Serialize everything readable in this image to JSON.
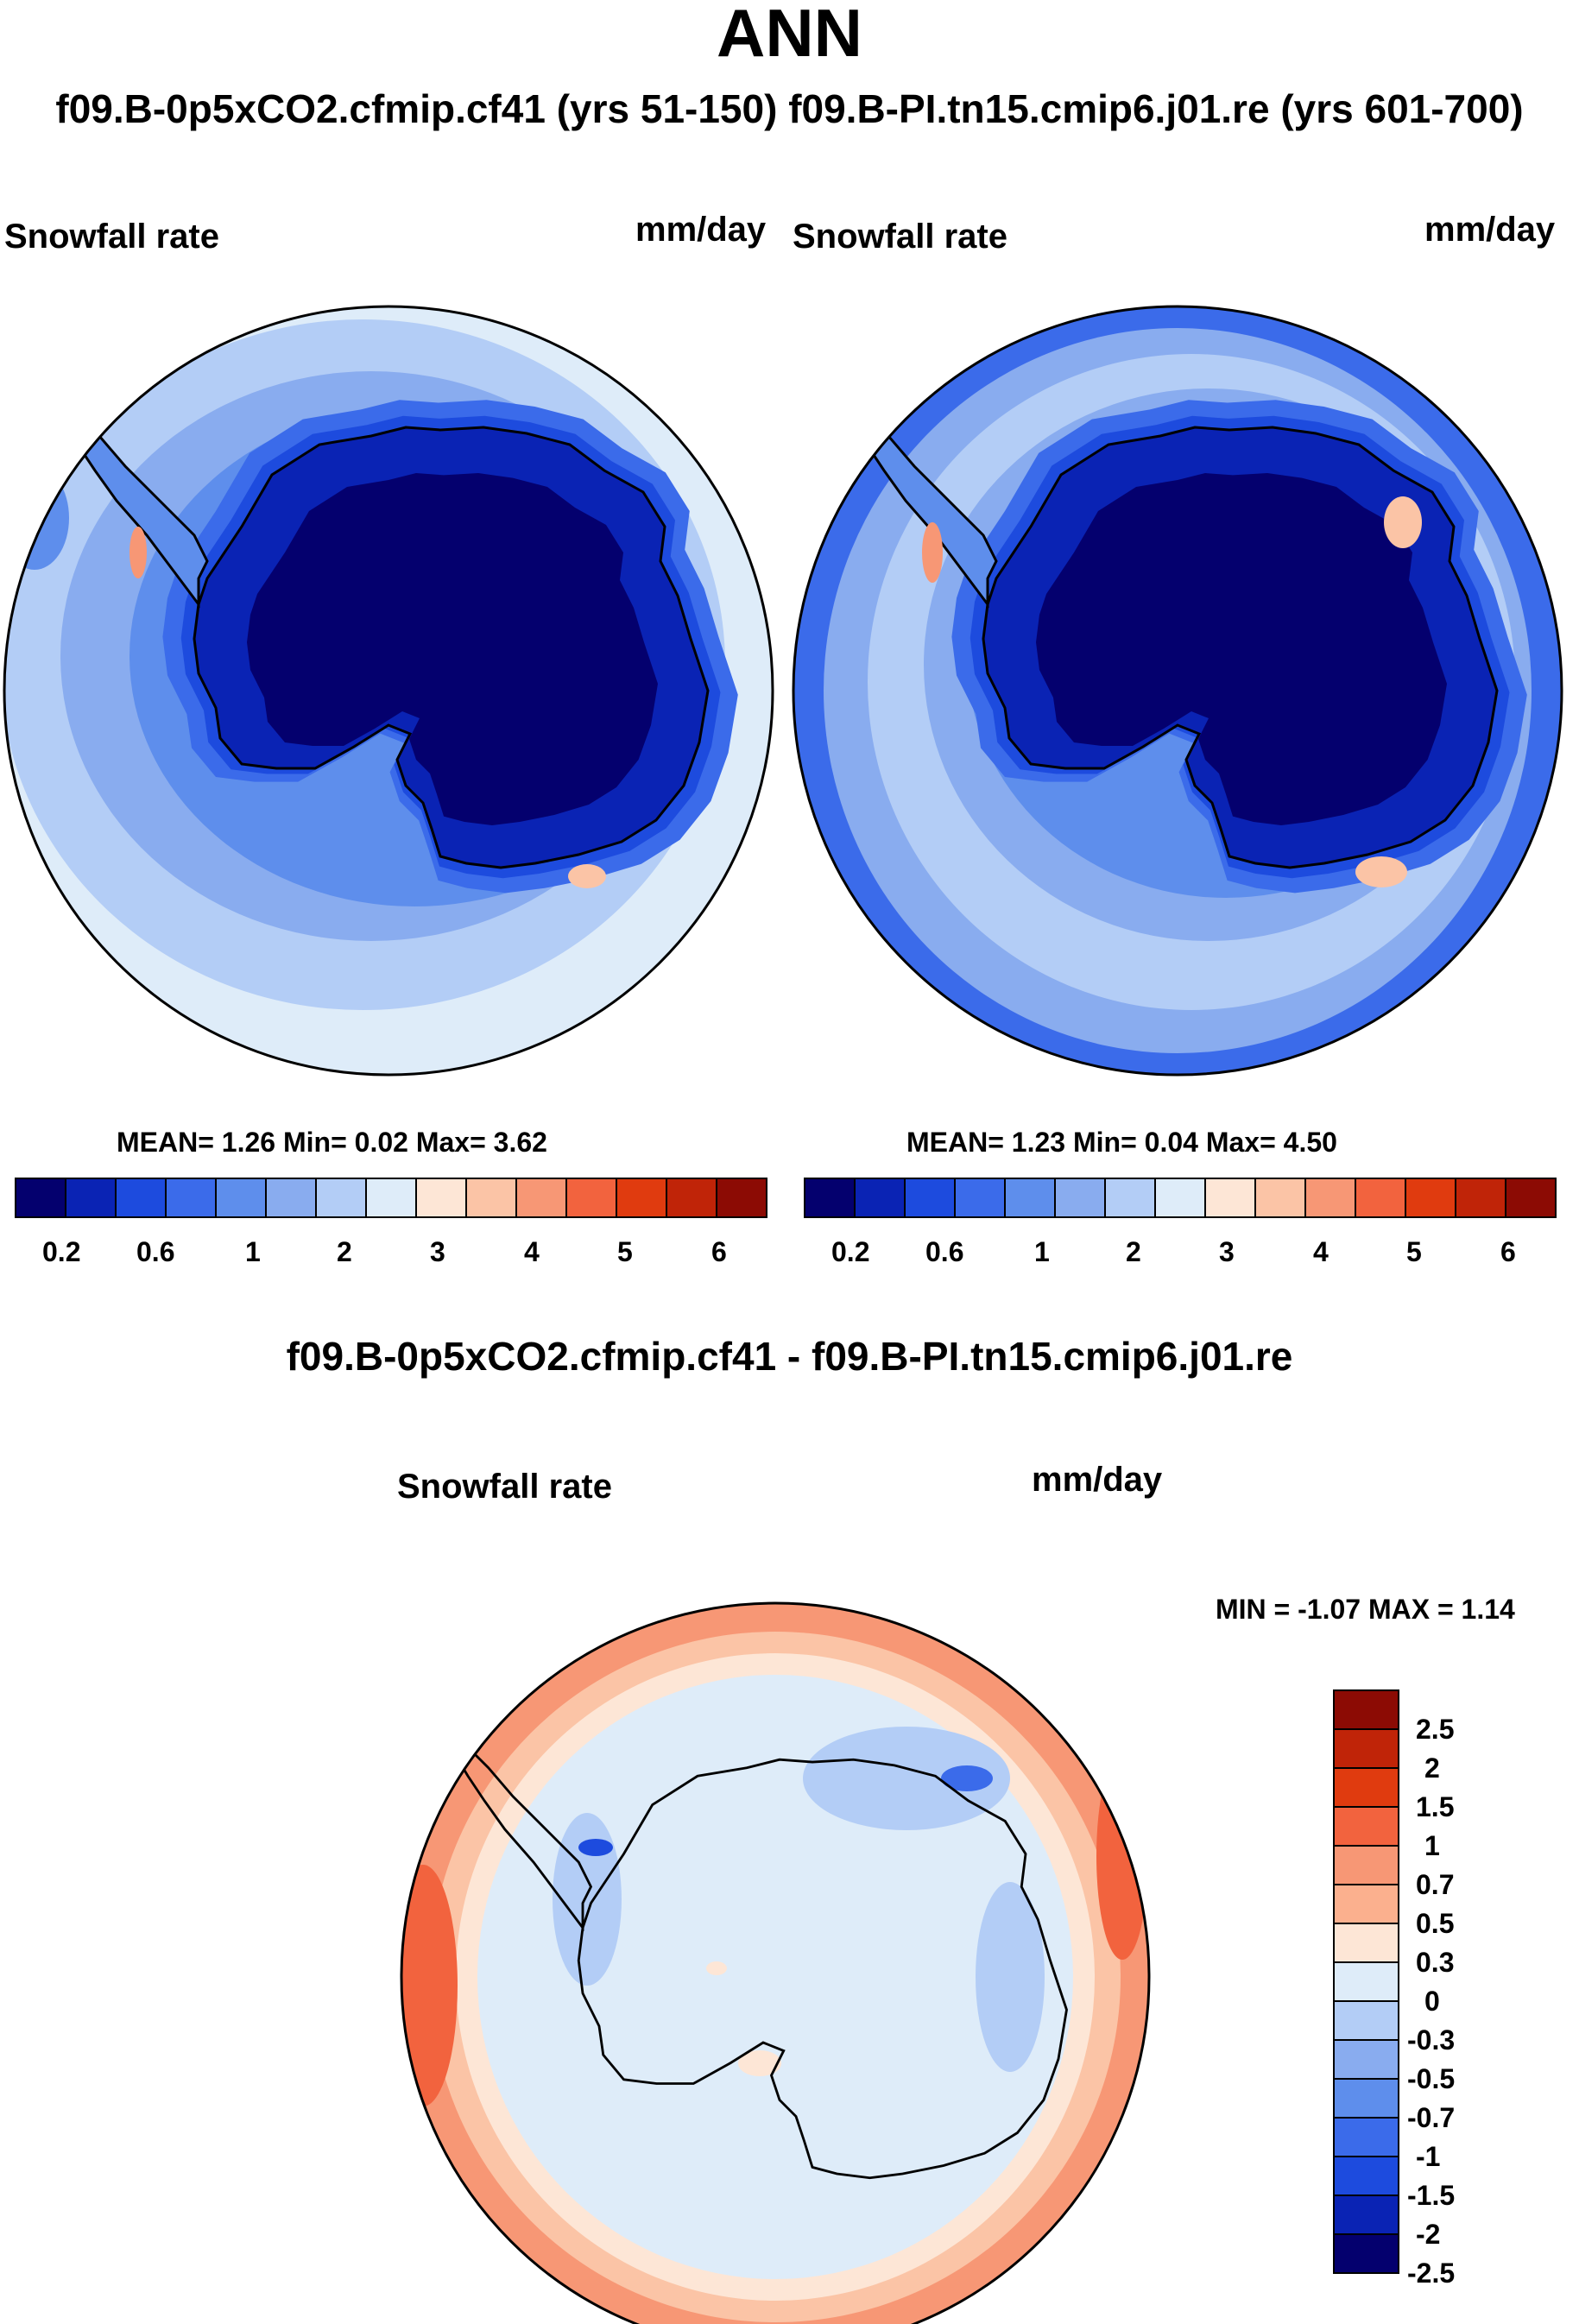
{
  "title": "ANN",
  "subtitle": "f09.B-0p5xCO2.cfmip.cf41 (yrs 51-150) f09.B-PI.tn15.cmip6.j01.re (yrs 601-700)",
  "panels": [
    {
      "variable": "Snowfall rate",
      "units": "mm/day",
      "stats": "MEAN=   1.26  Min=   0.02  Max=   3.62"
    },
    {
      "variable": "Snowfall rate",
      "units": "mm/day",
      "stats": "MEAN=   1.23  Min=   0.04  Max=   4.50"
    }
  ],
  "abs_colorbar": {
    "colors": [
      "#04006e",
      "#0a23b4",
      "#1d4bde",
      "#3b6bea",
      "#5e8eec",
      "#89acef",
      "#b3cdf6",
      "#deecf9",
      "#fde6d6",
      "#fbc4a6",
      "#f79775",
      "#f2633e",
      "#e03b0f",
      "#c02408",
      "#8c0b04"
    ],
    "tick_labels": [
      "0.2",
      "0.6",
      "1",
      "2",
      "3",
      "4",
      "5",
      "6"
    ]
  },
  "diff": {
    "title": "f09.B-0p5xCO2.cfmip.cf41 - f09.B-PI.tn15.cmip6.j01.re",
    "variable": "Snowfall rate",
    "units": "mm/day",
    "minmax": "MIN =  -1.07 MAX =   1.14"
  },
  "diff_colorbar": {
    "colors_top_to_bottom": [
      "#8c0b04",
      "#c02408",
      "#e03b0f",
      "#f2633e",
      "#f79775",
      "#fbb08e",
      "#fde6d6",
      "#deecf9",
      "#b3cdf6",
      "#89acef",
      "#5e8eec",
      "#3b6bea",
      "#1d4bde",
      "#0a23b4",
      "#04006e"
    ],
    "tick_labels": [
      "2.5",
      "2",
      "1.5",
      "1",
      "0.7",
      "0.5",
      "0.3",
      "0",
      "-0.3",
      "-0.5",
      "-0.7",
      "-1",
      "-1.5",
      "-2",
      "-2.5"
    ]
  },
  "colors": {
    "ocean_light": "#b3cdf6",
    "land_dark": "#04006e",
    "diff_pos": "#f79775",
    "diff_neg": "#deecf9"
  }
}
